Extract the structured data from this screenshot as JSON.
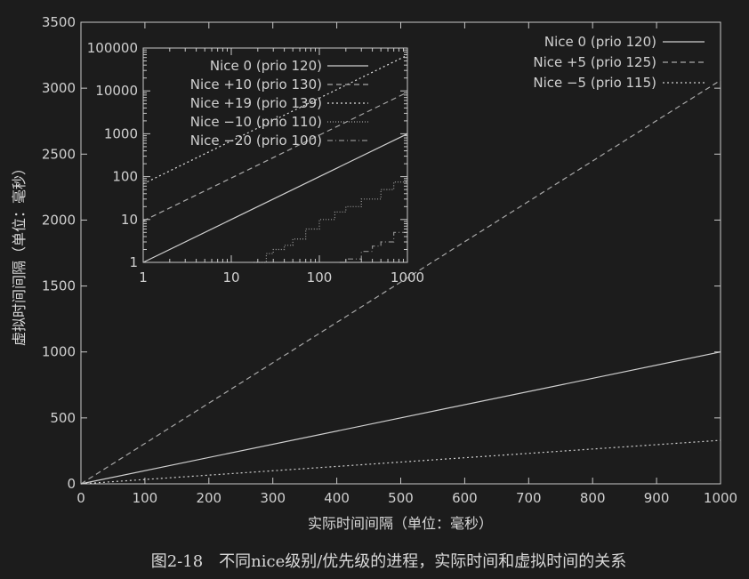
{
  "caption": "图2-18　不同nice级别/优先级的进程，实际时间和虚拟时间的关系",
  "chart_data": [
    {
      "type": "line",
      "xlabel": "实际时间间隔（单位：毫秒）",
      "ylabel": "虚拟时间间隔（单位：毫秒）",
      "xlim": [
        0,
        1000
      ],
      "ylim": [
        0,
        3500
      ],
      "xticks": [
        0,
        100,
        200,
        300,
        400,
        500,
        600,
        700,
        800,
        900,
        1000
      ],
      "yticks": [
        0,
        500,
        1000,
        1500,
        2000,
        2500,
        3000,
        3500
      ],
      "grid": false,
      "legend_position": "top-right",
      "series": [
        {
          "name": "Nice 0 (prio 120)",
          "style": "solid",
          "color": "#d0d0d0",
          "x": [
            0,
            1000
          ],
          "y": [
            0,
            1000
          ]
        },
        {
          "name": "Nice +5 (prio 125)",
          "style": "dashed",
          "color": "#a8a8a8",
          "x": [
            0,
            1000
          ],
          "y": [
            0,
            3060
          ]
        },
        {
          "name": "Nice −5 (prio 115)",
          "style": "dotted",
          "color": "#d0d0d0",
          "x": [
            0,
            1000
          ],
          "y": [
            0,
            330
          ]
        }
      ]
    },
    {
      "type": "line",
      "scale": "log-log",
      "xlim": [
        1,
        1000
      ],
      "ylim": [
        1,
        100000
      ],
      "xticks": [
        1,
        10,
        100,
        1000
      ],
      "yticks": [
        1,
        10,
        100,
        1000,
        10000,
        100000
      ],
      "grid": false,
      "legend_position": "top-left",
      "series": [
        {
          "name": "Nice 0 (prio 120)",
          "style": "solid",
          "color": "#d0d0d0",
          "x": [
            1,
            1000
          ],
          "y": [
            1,
            1000
          ]
        },
        {
          "name": "Nice +10 (prio 130)",
          "style": "dashed",
          "color": "#a8a8a8",
          "x": [
            1,
            1000
          ],
          "y": [
            9.3,
            9300
          ]
        },
        {
          "name": "Nice +19 (prio 139)",
          "style": "dotted",
          "color": "#e0e0e0",
          "x": [
            1,
            1000
          ],
          "y": [
            68,
            68000
          ]
        },
        {
          "name": "Nice −10 (prio 110)",
          "style": "fine-dotted",
          "color": "#a0a0a0",
          "x": [
            18,
            25,
            30,
            40,
            50,
            70,
            100,
            150,
            200,
            300,
            500,
            700,
            1000
          ],
          "y": [
            1,
            1.6,
            2,
            2.5,
            3.5,
            6,
            10,
            15,
            20,
            30,
            50,
            75,
            105
          ]
        },
        {
          "name": "Nice −20 (prio 100)",
          "style": "dash-dot",
          "color": "#909090",
          "x": [
            170,
            200,
            300,
            400,
            500,
            700,
            1000
          ],
          "y": [
            1,
            1.2,
            1.8,
            2.4,
            3,
            5,
            8.5
          ]
        }
      ]
    }
  ]
}
